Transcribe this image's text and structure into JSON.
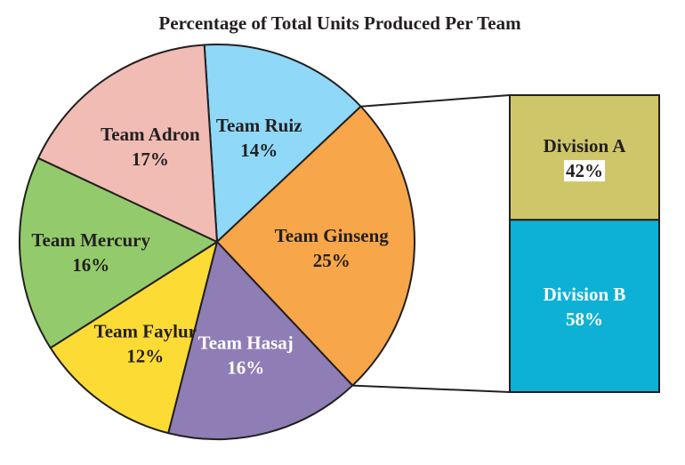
{
  "chart_data": [
    {
      "type": "pie",
      "title": "Percentage of Total Units Produced Per Team",
      "slices": [
        {
          "label": "Team Ruiz",
          "value": 14,
          "value_label": "14%",
          "color": "#8fd8f7"
        },
        {
          "label": "Team Ginseng",
          "value": 25,
          "value_label": "25%",
          "color": "#f7a649"
        },
        {
          "label": "Team Hasaj",
          "value": 16,
          "value_label": "16%",
          "color": "#8f7db5"
        },
        {
          "label": "Team Faylur",
          "value": 12,
          "value_label": "12%",
          "color": "#fcdb34"
        },
        {
          "label": "Team Mercury",
          "value": 16,
          "value_label": "16%",
          "color": "#93cb6c"
        },
        {
          "label": "Team Adron",
          "value": 17,
          "value_label": "17%",
          "color": "#f0bcb4"
        }
      ],
      "exploded_slice": "Team Ginseng"
    },
    {
      "type": "bar",
      "stacked": true,
      "breakdown_of": "Team Ginseng",
      "segments": [
        {
          "label": "Division A",
          "value": 42,
          "value_label": "42%",
          "color": "#cfc66a"
        },
        {
          "label": "Division B",
          "value": 58,
          "value_label": "58%",
          "color": "#0eb1d6"
        }
      ]
    }
  ]
}
